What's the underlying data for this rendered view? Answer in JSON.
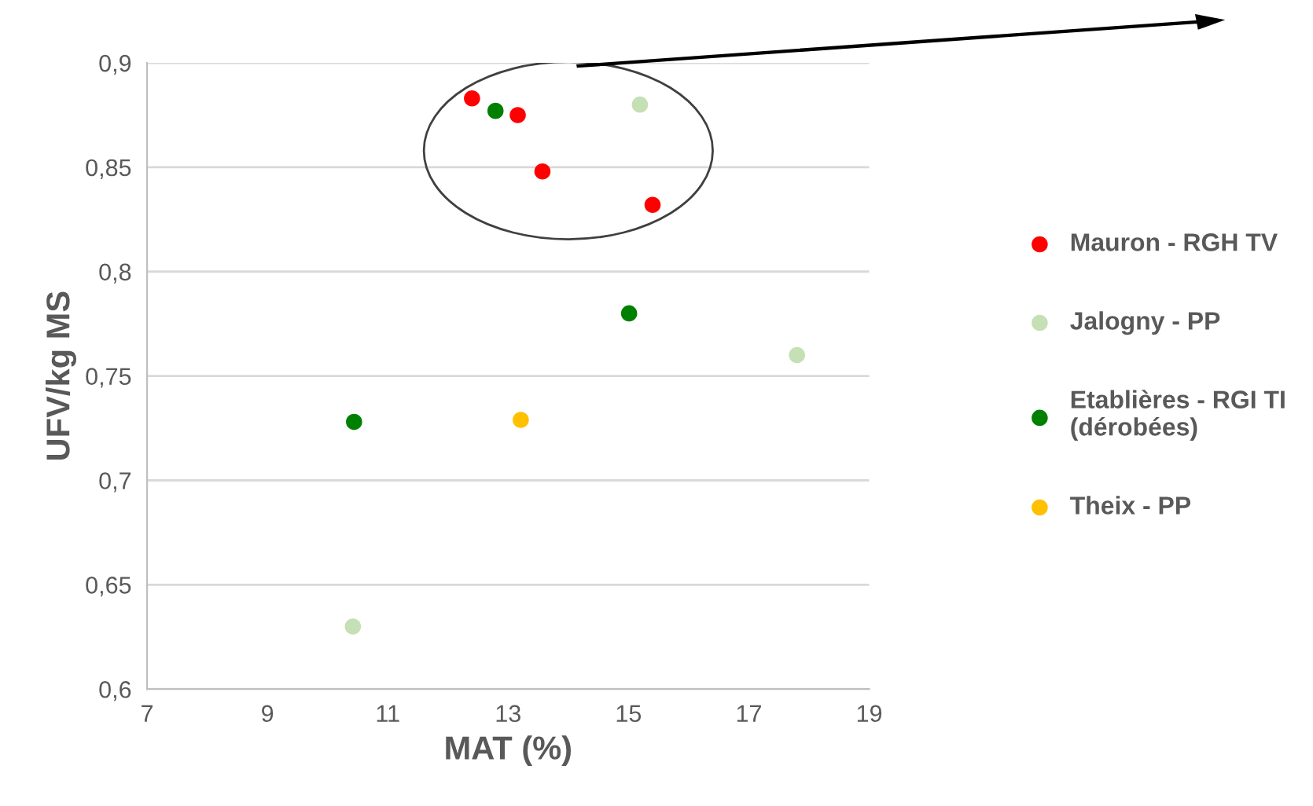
{
  "chart_data": {
    "type": "scatter",
    "xlabel": "MAT (%)",
    "ylabel": "UFV/kg MS",
    "xlim": [
      7,
      19
    ],
    "xticks": [
      7,
      9,
      11,
      13,
      15,
      17,
      19
    ],
    "ylim": [
      0.6,
      0.9
    ],
    "yticks": [
      {
        "value": 0.6,
        "label": "0,6"
      },
      {
        "value": 0.65,
        "label": "0,65"
      },
      {
        "value": 0.7,
        "label": "0,7"
      },
      {
        "value": 0.75,
        "label": "0,75"
      },
      {
        "value": 0.8,
        "label": "0,8"
      },
      {
        "value": 0.85,
        "label": "0,85"
      },
      {
        "value": 0.9,
        "label": "0,9"
      }
    ],
    "grid": "y",
    "legend": "right",
    "marker": "circle",
    "series": [
      {
        "name": "Mauron - RGH TV",
        "color": "#ff0000",
        "x": [
          12.4,
          13.16,
          13.57,
          15.4
        ],
        "values": [
          0.883,
          0.875,
          0.848,
          0.832
        ]
      },
      {
        "name": "Jalogny - PP",
        "color": "#c5e0b4",
        "x": [
          15.19,
          17.8,
          10.42
        ],
        "values": [
          0.88,
          0.76,
          0.63
        ]
      },
      {
        "name": "Etablières - RGI TI\n(dérobées)",
        "color": "#008000",
        "x": [
          12.79,
          15.01,
          10.44
        ],
        "values": [
          0.877,
          0.78,
          0.728
        ]
      },
      {
        "name": "Theix - PP",
        "color": "#ffc000",
        "x": [
          13.21
        ],
        "values": [
          0.729
        ]
      }
    ]
  }
}
